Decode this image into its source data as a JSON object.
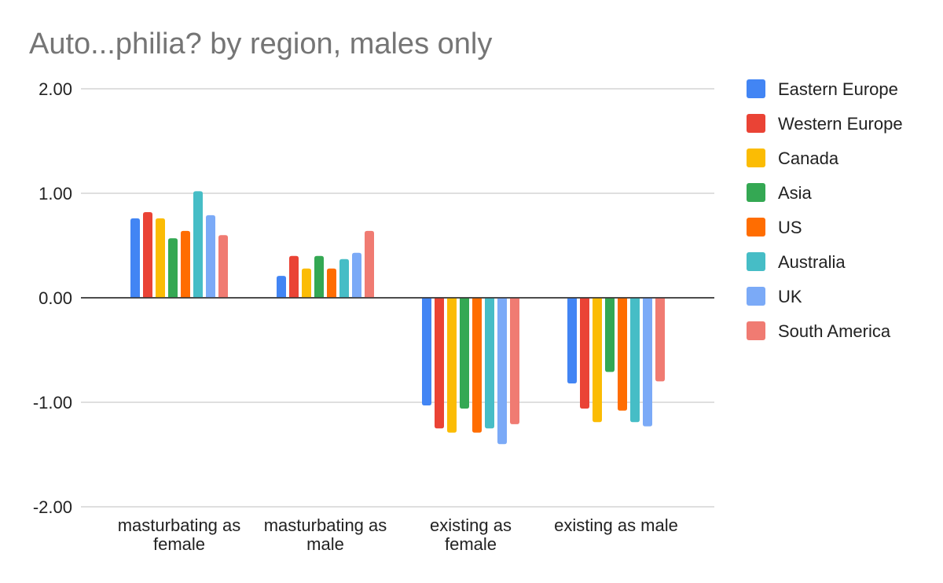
{
  "chart_data": {
    "type": "bar",
    "title": "Auto...philia? by region, males only",
    "xlabel": "",
    "ylabel": "",
    "ylim": [
      -2,
      2
    ],
    "yticks": [
      "2.00",
      "1.00",
      "0.00",
      "-1.00",
      "-2.00"
    ],
    "ytick_values": [
      2,
      1,
      0,
      -1,
      -2
    ],
    "grid": true,
    "legend_position": "right",
    "categories": [
      [
        "masturbating as",
        "female"
      ],
      [
        "masturbating as",
        "male"
      ],
      [
        "existing as",
        "female"
      ],
      [
        "existing as male"
      ]
    ],
    "series": [
      {
        "name": "Eastern Europe",
        "color": "#4285F4",
        "values": [
          0.76,
          0.21,
          -1.03,
          -0.82
        ]
      },
      {
        "name": "Western Europe",
        "color": "#EA4335",
        "values": [
          0.82,
          0.4,
          -1.25,
          -1.06
        ]
      },
      {
        "name": "Canada",
        "color": "#FBBC04",
        "values": [
          0.76,
          0.28,
          -1.29,
          -1.19
        ]
      },
      {
        "name": "Asia",
        "color": "#34A853",
        "values": [
          0.57,
          0.4,
          -1.06,
          -0.71
        ]
      },
      {
        "name": "US",
        "color": "#FF6D01",
        "values": [
          0.64,
          0.28,
          -1.29,
          -1.08
        ]
      },
      {
        "name": "Australia",
        "color": "#46BDC6",
        "values": [
          1.02,
          0.37,
          -1.25,
          -1.19
        ]
      },
      {
        "name": "UK",
        "color": "#7BAAF7",
        "values": [
          0.79,
          0.43,
          -1.4,
          -1.23
        ]
      },
      {
        "name": "South America",
        "color": "#F07B72",
        "values": [
          0.6,
          0.64,
          -1.21,
          -0.8
        ]
      }
    ]
  }
}
